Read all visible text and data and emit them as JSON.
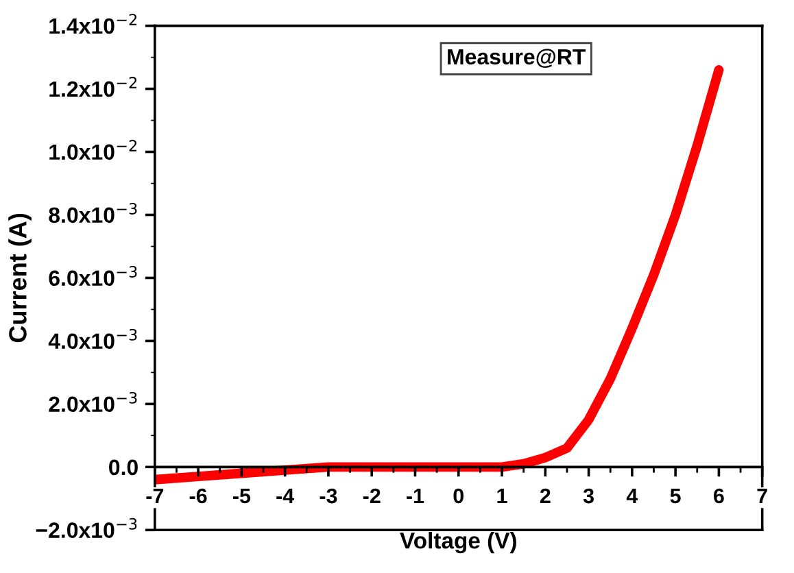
{
  "chart_data": {
    "type": "line",
    "xlabel": "Voltage (V)",
    "ylabel": "Current (A)",
    "annotations": [
      "Measure@RT"
    ],
    "series": [
      {
        "color": "#ff0000",
        "x": [
          -7,
          -6,
          -5,
          -4,
          -3,
          -2,
          -1,
          0,
          1,
          1.5,
          2,
          2.5,
          3,
          3.5,
          4,
          4.5,
          5,
          5.5,
          6
        ],
        "values": [
          -0.0004,
          -0.0003,
          -0.0002,
          -0.0001,
          0,
          0,
          0,
          0,
          0,
          0.0001,
          0.0003,
          0.0006,
          0.0015,
          0.0028,
          0.0044,
          0.0061,
          0.008,
          0.0102,
          0.0126
        ]
      }
    ],
    "xlim": [
      -7,
      7
    ],
    "xticks": [
      -7,
      -6,
      -5,
      -4,
      -3,
      -2,
      -1,
      0,
      1,
      2,
      3,
      4,
      5,
      6,
      7
    ],
    "ylim": [
      -0.002,
      0.014
    ],
    "yticks": [
      {
        "value": -0.002,
        "label": "−2.0x10$^{−3}$"
      },
      {
        "value": 0,
        "label": "0.0"
      },
      {
        "value": 0.002,
        "label": "2.0x10$^{−3}$"
      },
      {
        "value": 0.004,
        "label": "4.0x10$^{−3}$"
      },
      {
        "value": 0.006,
        "label": "6.0x10$^{−3}$"
      },
      {
        "value": 0.008,
        "label": "8.0x10$^{−3}$"
      },
      {
        "value": 0.01,
        "label": "1.0x10$^{−2}$"
      },
      {
        "value": 0.012,
        "label": "1.2x10$^{−2}$"
      },
      {
        "value": 0.014,
        "label": "1.4x10$^{−2}$"
      }
    ],
    "grid": false,
    "legend": false,
    "marker": "none",
    "line_style": "solid"
  }
}
